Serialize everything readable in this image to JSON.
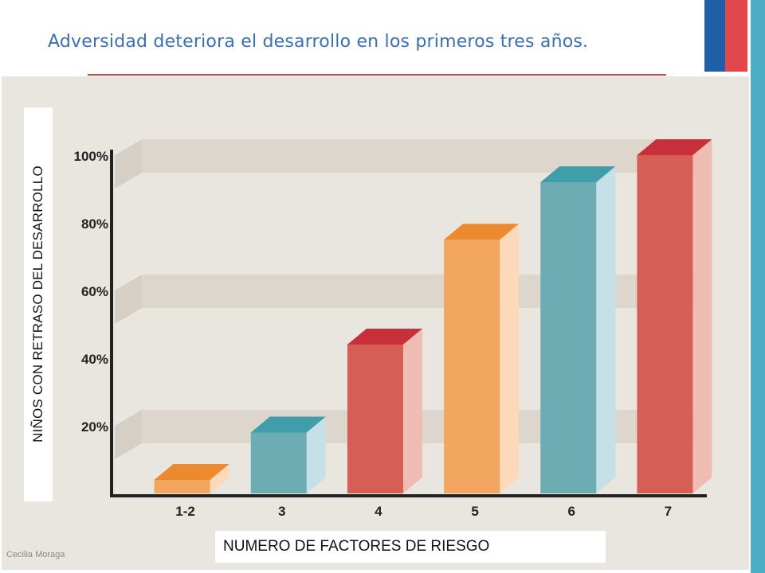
{
  "slide": {
    "title": "Adversidad deteriora el desarrollo en los primeros tres años.",
    "author": "Cecilia Moraga"
  },
  "colors": {
    "title": "#3a6fb3",
    "rule": "#c0504d",
    "stripe_blue": "#1f5fa8",
    "stripe_red": "#e2474b",
    "stripe_teal": "#4eaec6",
    "panel": "#e9e5df",
    "gridband": "#ddd6cd"
  },
  "chart_data": {
    "type": "bar",
    "title": "",
    "xlabel": "NUMERO DE FACTORES DE RIESGO",
    "ylabel": "NIÑOS CON RETRASO DEL DESARROLLO",
    "categories": [
      "1-2",
      "3",
      "4",
      "5",
      "6",
      "7"
    ],
    "values": [
      4,
      18,
      44,
      75,
      92,
      100
    ],
    "ylim": [
      0,
      100
    ],
    "yticks": [
      20,
      40,
      60,
      80,
      100
    ],
    "ytick_labels": [
      "20%",
      "40%",
      "60%",
      "80%",
      "100%"
    ],
    "grid": true,
    "bar_colors": [
      {
        "front": "#f3a660",
        "top": "#ed8a2e",
        "side": "#fcd9b8"
      },
      {
        "front": "#6eacb4",
        "top": "#3f9ea9",
        "side": "#c6e0e7"
      },
      {
        "front": "#d55e55",
        "top": "#c7303a",
        "side": "#efbcb4"
      },
      {
        "front": "#f3a660",
        "top": "#ed8a2e",
        "side": "#fcd9b8"
      },
      {
        "front": "#6eacb4",
        "top": "#3f9ea9",
        "side": "#c6e0e7"
      },
      {
        "front": "#d55e55",
        "top": "#c7303a",
        "side": "#efbcb4"
      }
    ]
  }
}
